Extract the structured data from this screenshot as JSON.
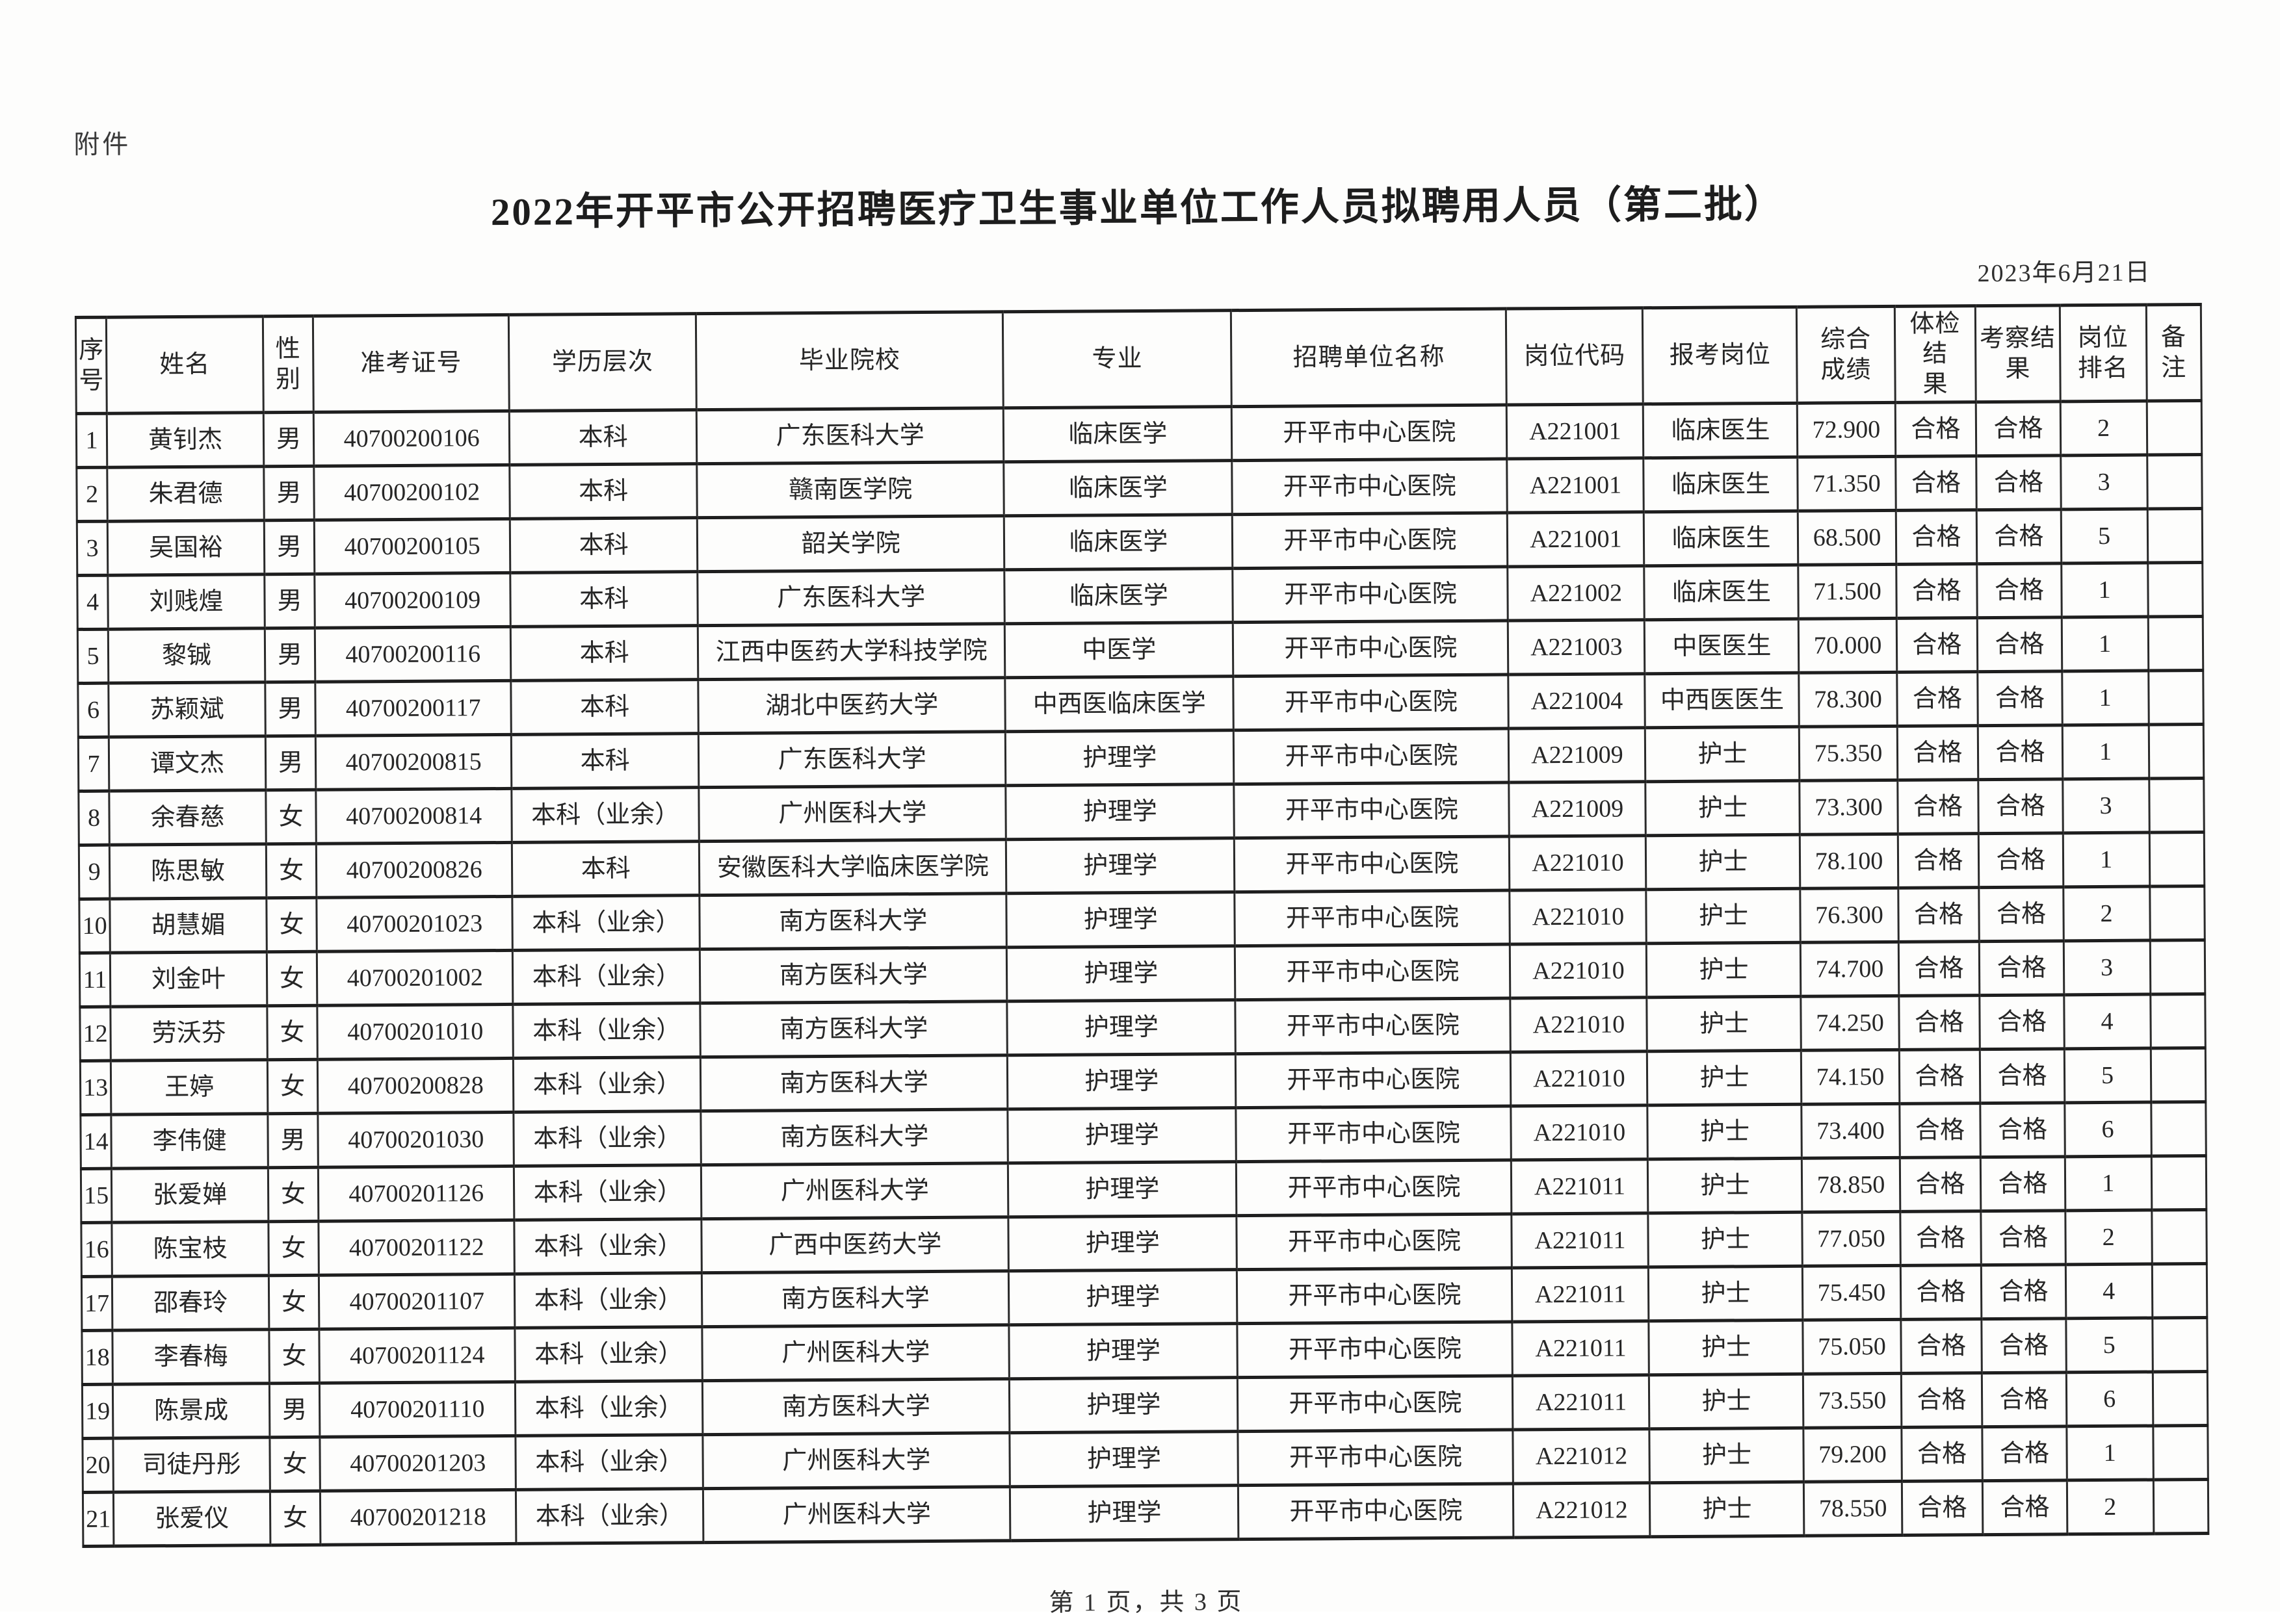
{
  "page": {
    "attachment_label": "附件",
    "title": "2022年开平市公开招聘医疗卫生事业单位工作人员拟聘用人员（第二批）",
    "date": "2023年6月21日",
    "footer": "第 1 页，共 3 页"
  },
  "table": {
    "headers": [
      "序\n号",
      "姓名",
      "性\n别",
      "准考证号",
      "学历层次",
      "毕业院校",
      "专业",
      "招聘单位名称",
      "岗位代码",
      "报考岗位",
      "综合\n成绩",
      "体检结\n果",
      "考察结\n果",
      "岗位\n排名",
      "备注"
    ],
    "rows": [
      [
        "1",
        "黄钊杰",
        "男",
        "40700200106",
        "本科",
        "广东医科大学",
        "临床医学",
        "开平市中心医院",
        "A221001",
        "临床医生",
        "72.900",
        "合格",
        "合格",
        "2",
        ""
      ],
      [
        "2",
        "朱君德",
        "男",
        "40700200102",
        "本科",
        "赣南医学院",
        "临床医学",
        "开平市中心医院",
        "A221001",
        "临床医生",
        "71.350",
        "合格",
        "合格",
        "3",
        ""
      ],
      [
        "3",
        "吴国裕",
        "男",
        "40700200105",
        "本科",
        "韶关学院",
        "临床医学",
        "开平市中心医院",
        "A221001",
        "临床医生",
        "68.500",
        "合格",
        "合格",
        "5",
        ""
      ],
      [
        "4",
        "刘贱煌",
        "男",
        "40700200109",
        "本科",
        "广东医科大学",
        "临床医学",
        "开平市中心医院",
        "A221002",
        "临床医生",
        "71.500",
        "合格",
        "合格",
        "1",
        ""
      ],
      [
        "5",
        "黎铖",
        "男",
        "40700200116",
        "本科",
        "江西中医药大学科技学院",
        "中医学",
        "开平市中心医院",
        "A221003",
        "中医医生",
        "70.000",
        "合格",
        "合格",
        "1",
        ""
      ],
      [
        "6",
        "苏颖斌",
        "男",
        "40700200117",
        "本科",
        "湖北中医药大学",
        "中西医临床医学",
        "开平市中心医院",
        "A221004",
        "中西医医生",
        "78.300",
        "合格",
        "合格",
        "1",
        ""
      ],
      [
        "7",
        "谭文杰",
        "男",
        "40700200815",
        "本科",
        "广东医科大学",
        "护理学",
        "开平市中心医院",
        "A221009",
        "护士",
        "75.350",
        "合格",
        "合格",
        "1",
        ""
      ],
      [
        "8",
        "余春慈",
        "女",
        "40700200814",
        "本科（业余）",
        "广州医科大学",
        "护理学",
        "开平市中心医院",
        "A221009",
        "护士",
        "73.300",
        "合格",
        "合格",
        "3",
        ""
      ],
      [
        "9",
        "陈思敏",
        "女",
        "40700200826",
        "本科",
        "安徽医科大学临床医学院",
        "护理学",
        "开平市中心医院",
        "A221010",
        "护士",
        "78.100",
        "合格",
        "合格",
        "1",
        ""
      ],
      [
        "10",
        "胡慧媚",
        "女",
        "40700201023",
        "本科（业余）",
        "南方医科大学",
        "护理学",
        "开平市中心医院",
        "A221010",
        "护士",
        "76.300",
        "合格",
        "合格",
        "2",
        ""
      ],
      [
        "11",
        "刘金叶",
        "女",
        "40700201002",
        "本科（业余）",
        "南方医科大学",
        "护理学",
        "开平市中心医院",
        "A221010",
        "护士",
        "74.700",
        "合格",
        "合格",
        "3",
        ""
      ],
      [
        "12",
        "劳沃芬",
        "女",
        "40700201010",
        "本科（业余）",
        "南方医科大学",
        "护理学",
        "开平市中心医院",
        "A221010",
        "护士",
        "74.250",
        "合格",
        "合格",
        "4",
        ""
      ],
      [
        "13",
        "王婷",
        "女",
        "40700200828",
        "本科（业余）",
        "南方医科大学",
        "护理学",
        "开平市中心医院",
        "A221010",
        "护士",
        "74.150",
        "合格",
        "合格",
        "5",
        ""
      ],
      [
        "14",
        "李伟健",
        "男",
        "40700201030",
        "本科（业余）",
        "南方医科大学",
        "护理学",
        "开平市中心医院",
        "A221010",
        "护士",
        "73.400",
        "合格",
        "合格",
        "6",
        ""
      ],
      [
        "15",
        "张爱婵",
        "女",
        "40700201126",
        "本科（业余）",
        "广州医科大学",
        "护理学",
        "开平市中心医院",
        "A221011",
        "护士",
        "78.850",
        "合格",
        "合格",
        "1",
        ""
      ],
      [
        "16",
        "陈宝枝",
        "女",
        "40700201122",
        "本科（业余）",
        "广西中医药大学",
        "护理学",
        "开平市中心医院",
        "A221011",
        "护士",
        "77.050",
        "合格",
        "合格",
        "2",
        ""
      ],
      [
        "17",
        "邵春玲",
        "女",
        "40700201107",
        "本科（业余）",
        "南方医科大学",
        "护理学",
        "开平市中心医院",
        "A221011",
        "护士",
        "75.450",
        "合格",
        "合格",
        "4",
        ""
      ],
      [
        "18",
        "李春梅",
        "女",
        "40700201124",
        "本科（业余）",
        "广州医科大学",
        "护理学",
        "开平市中心医院",
        "A221011",
        "护士",
        "75.050",
        "合格",
        "合格",
        "5",
        ""
      ],
      [
        "19",
        "陈景成",
        "男",
        "40700201110",
        "本科（业余）",
        "南方医科大学",
        "护理学",
        "开平市中心医院",
        "A221011",
        "护士",
        "73.550",
        "合格",
        "合格",
        "6",
        ""
      ],
      [
        "20",
        "司徒丹彤",
        "女",
        "40700201203",
        "本科（业余）",
        "广州医科大学",
        "护理学",
        "开平市中心医院",
        "A221012",
        "护士",
        "79.200",
        "合格",
        "合格",
        "1",
        ""
      ],
      [
        "21",
        "张爱仪",
        "女",
        "40700201218",
        "本科（业余）",
        "广州医科大学",
        "护理学",
        "开平市中心医院",
        "A221012",
        "护士",
        "78.550",
        "合格",
        "合格",
        "2",
        ""
      ]
    ]
  }
}
